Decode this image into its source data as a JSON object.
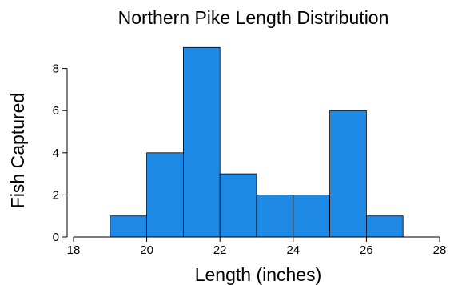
{
  "chart_data": {
    "type": "bar",
    "title": "Northern Pike Length Distribution",
    "xlabel": "Length (inches)",
    "ylabel": "Fish Captured",
    "xlim": [
      18,
      28
    ],
    "ylim": [
      0,
      9
    ],
    "x_ticks": [
      18,
      20,
      22,
      24,
      26,
      28
    ],
    "y_ticks": [
      0,
      2,
      4,
      6,
      8
    ],
    "bins": [
      {
        "start": 19,
        "end": 20,
        "value": 1
      },
      {
        "start": 20,
        "end": 21,
        "value": 4
      },
      {
        "start": 21,
        "end": 22,
        "value": 9
      },
      {
        "start": 22,
        "end": 23,
        "value": 3
      },
      {
        "start": 23,
        "end": 24,
        "value": 2
      },
      {
        "start": 24,
        "end": 25,
        "value": 2
      },
      {
        "start": 25,
        "end": 26,
        "value": 6
      },
      {
        "start": 26,
        "end": 27,
        "value": 1
      }
    ],
    "bar_color": "#1e88e5",
    "grid": false,
    "legend": "none"
  }
}
